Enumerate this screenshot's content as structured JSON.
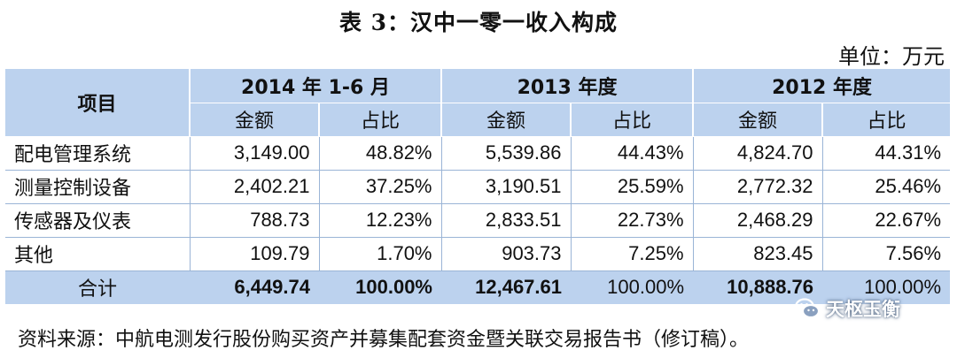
{
  "title": "表 3：汉中一零一收入构成",
  "unit": "单位：万元",
  "table": {
    "item_header": "项目",
    "periods": [
      "2014 年 1-6 月",
      "2013 年度",
      "2012 年度"
    ],
    "subheaders": [
      "金额",
      "占比"
    ],
    "rows": [
      {
        "item": "配电管理系统",
        "values": [
          "3,149.00",
          "48.82%",
          "5,539.86",
          "44.43%",
          "4,824.70",
          "44.31%"
        ]
      },
      {
        "item": "测量控制设备",
        "values": [
          "2,402.21",
          "37.25%",
          "3,190.51",
          "25.59%",
          "2,772.32",
          "25.46%"
        ]
      },
      {
        "item": "传感器及仪表",
        "values": [
          "788.73",
          "12.23%",
          "2,833.51",
          "22.73%",
          "2,468.29",
          "22.67%"
        ]
      },
      {
        "item": "其他",
        "values": [
          "109.79",
          "1.70%",
          "903.73",
          "7.25%",
          "823.45",
          "7.56%"
        ]
      }
    ],
    "total": {
      "item": "合计",
      "values": [
        "6,449.74",
        "100.00%",
        "12,467.61",
        "100.00%",
        "10,888.76",
        "100.00%"
      ]
    }
  },
  "source": "资料来源：中航电测发行股份购买资产并募集配套资金暨关联交易报告书（修订稿）。",
  "watermark": {
    "text": "天枢玉衡",
    "icon": "wechat-icon"
  }
}
